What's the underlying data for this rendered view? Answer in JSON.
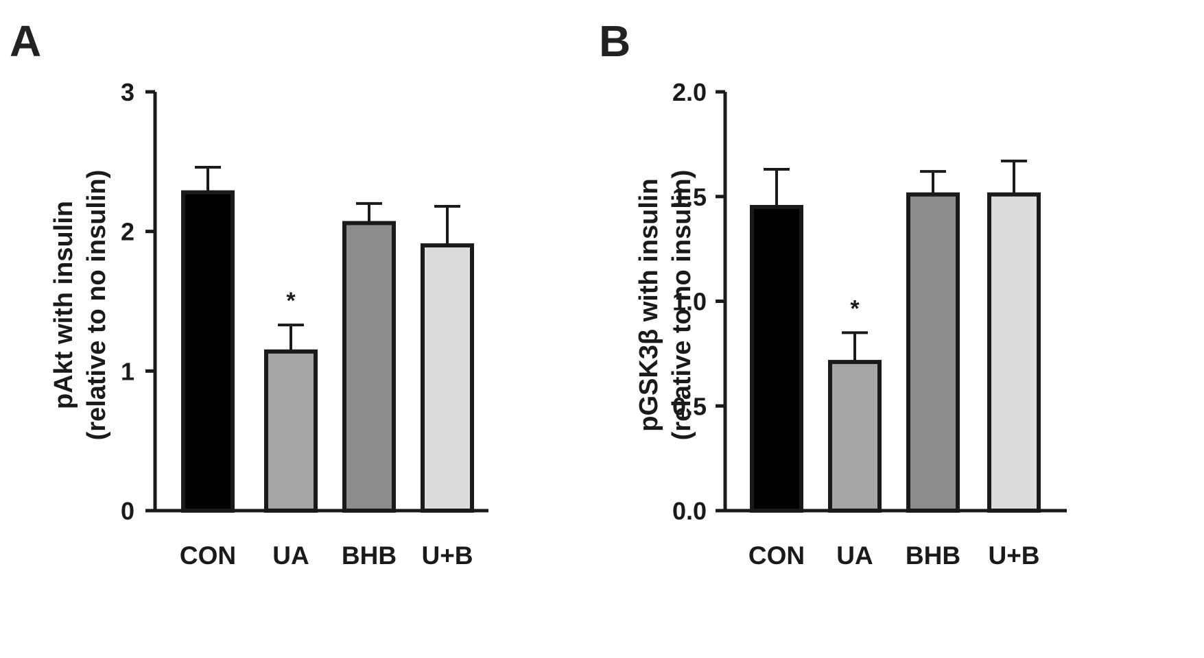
{
  "panels": [
    {
      "letter": "A",
      "ylabel_line1": "pAkt with insulin",
      "ylabel_line2": "(relative to no insulin)"
    },
    {
      "letter": "B",
      "ylabel_line1": "pGSK3β with insulin",
      "ylabel_line2": "(relative to no insulin)"
    }
  ],
  "chart_data": [
    {
      "type": "bar",
      "title": "A",
      "categories": [
        "CON",
        "UA",
        "BHB",
        "U+B"
      ],
      "values": [
        2.28,
        1.14,
        2.06,
        1.9
      ],
      "error_upper": [
        2.46,
        1.33,
        2.2,
        2.18
      ],
      "significance": [
        "",
        "*",
        "",
        ""
      ],
      "colors": [
        "#000000",
        "#a6a6a6",
        "#8c8c8c",
        "#dcdcdc"
      ],
      "ylabel": "pAkt with insulin (relative to no insulin)",
      "ylim": [
        0,
        3
      ],
      "yticks": [
        0,
        1,
        2,
        3
      ],
      "ytick_labels": [
        "0",
        "1",
        "2",
        "3"
      ],
      "grid": false
    },
    {
      "type": "bar",
      "title": "B",
      "categories": [
        "CON",
        "UA",
        "BHB",
        "U+B"
      ],
      "values": [
        1.45,
        0.71,
        1.51,
        1.51
      ],
      "error_upper": [
        1.63,
        0.85,
        1.62,
        1.67
      ],
      "significance": [
        "",
        "*",
        "",
        ""
      ],
      "colors": [
        "#000000",
        "#a6a6a6",
        "#8c8c8c",
        "#dcdcdc"
      ],
      "ylabel": "pGSK3β with insulin (relative to no insulin)",
      "ylim": [
        0,
        2
      ],
      "yticks": [
        0,
        0.5,
        1,
        1.5,
        2
      ],
      "ytick_labels": [
        "0.0",
        "0.5",
        "1.0",
        "1.5",
        "2.0"
      ],
      "grid": false
    }
  ]
}
